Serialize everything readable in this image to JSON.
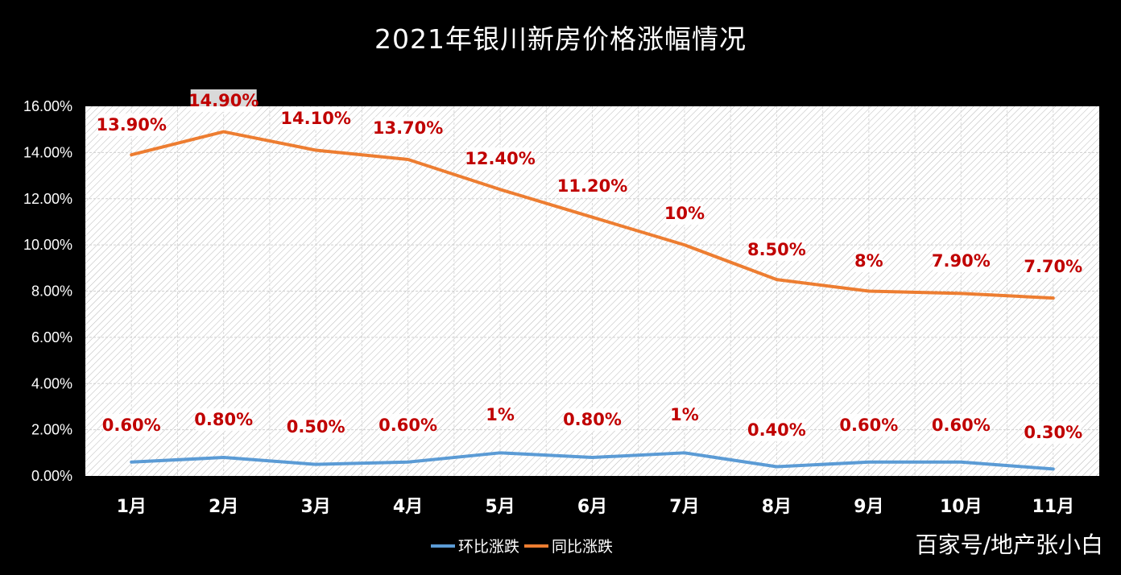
{
  "chart_data": {
    "type": "line",
    "title": "2021年银川新房价格涨幅情况",
    "xlabel": "",
    "ylabel": "",
    "categories": [
      "1月",
      "2月",
      "3月",
      "4月",
      "5月",
      "6月",
      "7月",
      "8月",
      "9月",
      "10月",
      "11月"
    ],
    "series": [
      {
        "name": "环比涨跌",
        "color": "#5b9bd5",
        "values": [
          0.6,
          0.8,
          0.5,
          0.6,
          1.0,
          0.8,
          1.0,
          0.4,
          0.6,
          0.6,
          0.3
        ],
        "labels": [
          "0.60%",
          "0.80%",
          "0.50%",
          "0.60%",
          "1%",
          "0.80%",
          "1%",
          "0.40%",
          "0.60%",
          "0.60%",
          "0.30%"
        ]
      },
      {
        "name": "同比涨跌",
        "color": "#ed7d31",
        "values": [
          13.9,
          14.9,
          14.1,
          13.7,
          12.4,
          11.2,
          10.0,
          8.5,
          8.0,
          7.9,
          7.7
        ],
        "labels": [
          "13.90%",
          "14.90%",
          "14.10%",
          "13.70%",
          "12.40%",
          "11.20%",
          "10%",
          "8.50%",
          "8%",
          "7.90%",
          "7.70%"
        ]
      }
    ],
    "ylim": [
      0,
      16
    ],
    "yticks": [
      "0.00%",
      "2.00%",
      "4.00%",
      "6.00%",
      "8.00%",
      "10.00%",
      "12.00%",
      "14.00%",
      "16.00%"
    ],
    "grid": true,
    "legend_position": "bottom",
    "label_color": "#c00000"
  },
  "watermark": "百家号/地产张小白"
}
